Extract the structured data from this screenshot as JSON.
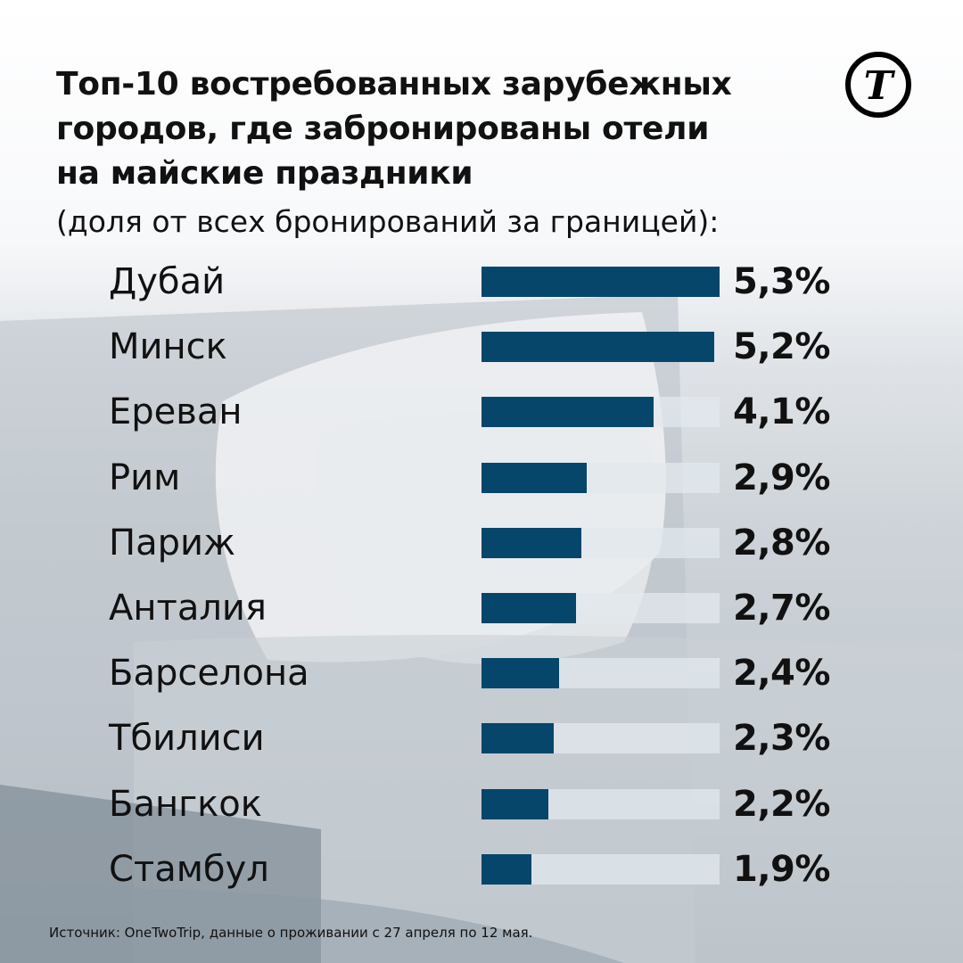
{
  "chart_data": {
    "type": "bar",
    "orientation": "horizontal",
    "title": "Топ-10 востребованных зарубежных городов, где забронированы отели на майские праздники",
    "subtitle": "(доля от всех бронирований за границей):",
    "categories": [
      "Дубай",
      "Минск",
      "Ереван",
      "Рим",
      "Париж",
      "Анталия",
      "Барселона",
      "Тбилиси",
      "Бангкок",
      "Стамбул"
    ],
    "values": [
      5.3,
      5.2,
      4.1,
      2.9,
      2.8,
      2.7,
      2.4,
      2.3,
      2.2,
      1.9
    ],
    "value_labels": [
      "5,3%",
      "5,2%",
      "4,1%",
      "2,9%",
      "2,8%",
      "2,7%",
      "2,4%",
      "2,3%",
      "2,2%",
      "1,9%"
    ],
    "unit": "%",
    "xlim": [
      1,
      5.3
    ],
    "xlabel": "",
    "ylabel": "",
    "grid": false,
    "legend": "none"
  },
  "title_lines": [
    "Топ-10 востребованных зарубежных",
    "городов, где забронированы отели",
    "на майские праздники"
  ],
  "source": "Источник: OneTwoTrip, данные о проживании с 27 апреля по 12 мая.",
  "logo": "Т",
  "colors": {
    "bar": "#05466a",
    "track": "#e1e8ed",
    "text": "#111111"
  }
}
